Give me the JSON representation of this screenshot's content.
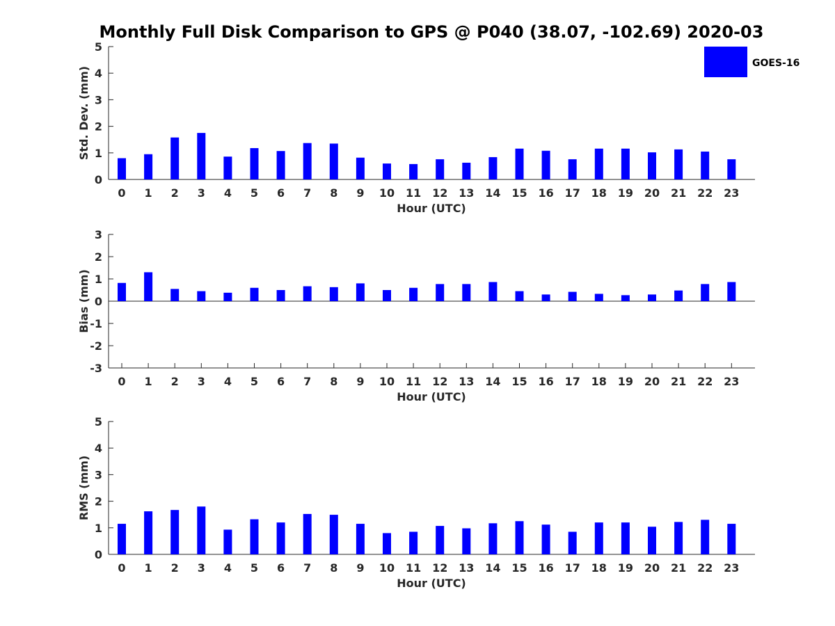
{
  "title": "Monthly Full Disk Comparison to GPS @ P040 (38.07, -102.69) 2020-03",
  "legend": {
    "label": "GOES-16",
    "color": "#0000ff"
  },
  "chart_data": [
    {
      "type": "bar",
      "name": "std-dev",
      "categories": [
        "0",
        "1",
        "2",
        "3",
        "4",
        "5",
        "6",
        "7",
        "8",
        "9",
        "10",
        "11",
        "12",
        "13",
        "14",
        "15",
        "16",
        "17",
        "18",
        "19",
        "20",
        "21",
        "22",
        "23"
      ],
      "series": [
        {
          "name": "GOES-16",
          "values": [
            0.8,
            0.95,
            1.58,
            1.75,
            0.86,
            1.18,
            1.07,
            1.37,
            1.35,
            0.82,
            0.6,
            0.58,
            0.76,
            0.63,
            0.84,
            1.16,
            1.08,
            0.76,
            1.16,
            1.16,
            1.02,
            1.13,
            1.05,
            0.76
          ]
        }
      ],
      "xlabel": "Hour (UTC)",
      "ylabel": "Std. Dev. (mm)",
      "ylim": [
        0,
        5
      ],
      "yticks": [
        "0",
        "1",
        "2",
        "3",
        "4",
        "5"
      ]
    },
    {
      "type": "bar",
      "name": "bias",
      "categories": [
        "0",
        "1",
        "2",
        "3",
        "4",
        "5",
        "6",
        "7",
        "8",
        "9",
        "10",
        "11",
        "12",
        "13",
        "14",
        "15",
        "16",
        "17",
        "18",
        "19",
        "20",
        "21",
        "22",
        "23"
      ],
      "series": [
        {
          "name": "GOES-16",
          "values": [
            0.82,
            1.3,
            0.55,
            0.45,
            0.38,
            0.6,
            0.5,
            0.67,
            0.63,
            0.8,
            0.5,
            0.6,
            0.77,
            0.77,
            0.86,
            0.45,
            0.3,
            0.42,
            0.33,
            0.27,
            0.3,
            0.48,
            0.77,
            0.86
          ]
        }
      ],
      "xlabel": "Hour (UTC)",
      "ylabel": "Bias (mm)",
      "ylim": [
        -3,
        3
      ],
      "yticks": [
        "-3",
        "-2",
        "-1",
        "0",
        "1",
        "2",
        "3"
      ]
    },
    {
      "type": "bar",
      "name": "rms",
      "categories": [
        "0",
        "1",
        "2",
        "3",
        "4",
        "5",
        "6",
        "7",
        "8",
        "9",
        "10",
        "11",
        "12",
        "13",
        "14",
        "15",
        "16",
        "17",
        "18",
        "19",
        "20",
        "21",
        "22",
        "23"
      ],
      "series": [
        {
          "name": "GOES-16",
          "values": [
            1.15,
            1.62,
            1.67,
            1.8,
            0.93,
            1.32,
            1.2,
            1.52,
            1.49,
            1.15,
            0.8,
            0.85,
            1.07,
            0.98,
            1.17,
            1.25,
            1.12,
            0.85,
            1.2,
            1.2,
            1.04,
            1.22,
            1.3,
            1.15
          ]
        }
      ],
      "xlabel": "Hour (UTC)",
      "ylabel": "RMS (mm)",
      "ylim": [
        0,
        5
      ],
      "yticks": [
        "0",
        "1",
        "2",
        "3",
        "4",
        "5"
      ]
    }
  ]
}
